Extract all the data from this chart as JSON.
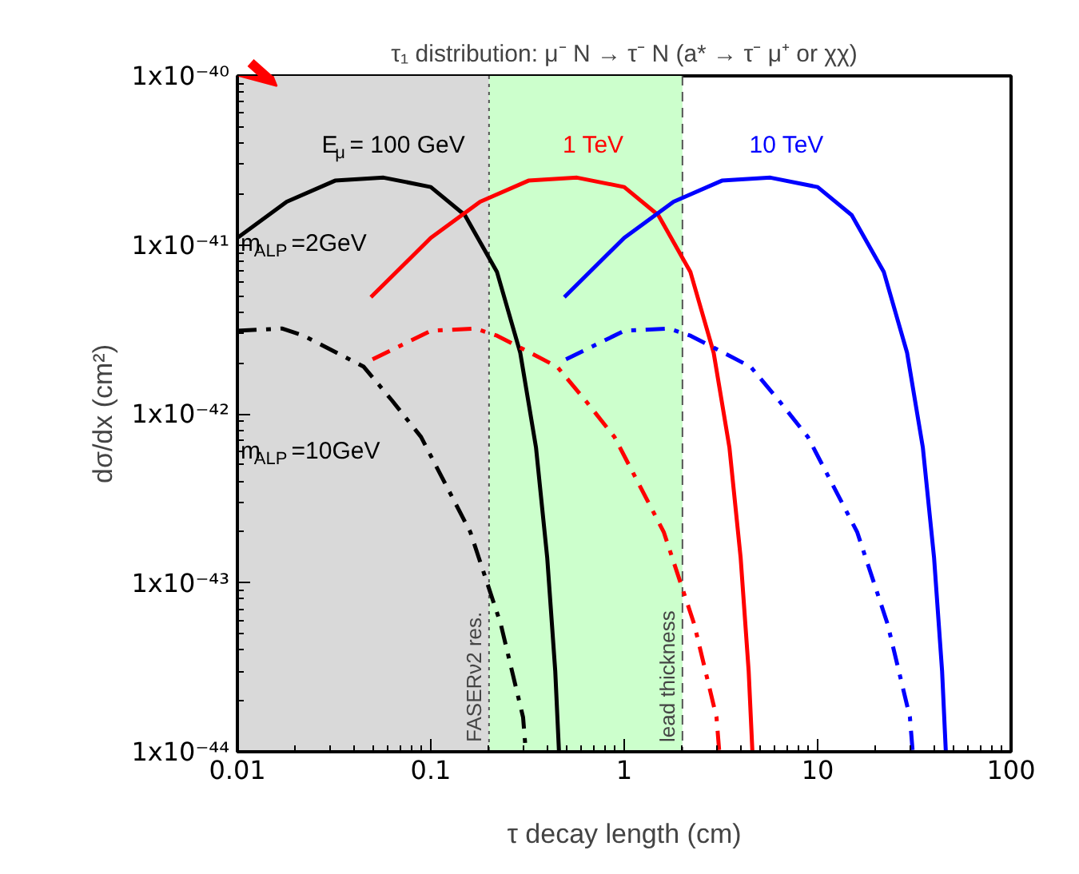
{
  "chart_data": {
    "type": "line",
    "title": "τ₁ distribution: μ⁻ N → τ⁻ N (a* → τ⁻ μ⁺ or χχ)",
    "xlabel": "τ decay length (cm)",
    "ylabel": "dσ/dx (cm²)",
    "log": "xy",
    "grid": false,
    "xlim": [
      0.01,
      100
    ],
    "ylim": [
      1e-44,
      1e-40
    ],
    "xticks": [
      0.01,
      0.1,
      1,
      10,
      100
    ],
    "yticks": [
      {
        "value": 1e-44,
        "label": "1x10⁻⁴⁴"
      },
      {
        "value": 1e-43,
        "label": "1x10⁻⁴³"
      },
      {
        "value": 1e-42,
        "label": "1x10⁻⁴²"
      },
      {
        "value": 1e-41,
        "label": "1x10⁻⁴¹"
      },
      {
        "value": 1e-40,
        "label": "1x10⁻⁴⁰"
      }
    ],
    "series": [
      {
        "name": "E$_{μ}$ = 100 GeV",
        "color": "#000000",
        "line_style": "solid",
        "x": [
          0.01,
          0.018,
          0.032,
          0.057,
          0.1,
          0.15,
          0.22,
          0.29,
          0.35,
          0.4,
          0.44,
          0.46
        ],
        "values": [
          1.1e-41,
          1.8e-41,
          2.4e-41,
          2.5e-41,
          2.2e-41,
          1.5e-41,
          6.9e-42,
          2.3e-42,
          6.3e-43,
          1.4e-43,
          3e-44,
          1e-44
        ]
      },
      {
        "color": "#000000",
        "line_style": "dashdot",
        "x": [
          0.01,
          0.017,
          0.022,
          0.045,
          0.063,
          0.089,
          0.16,
          0.23,
          0.3,
          0.31
        ],
        "values": [
          3.1e-42,
          3.2e-42,
          2.9e-42,
          1.9e-42,
          1.2e-42,
          7.3e-43,
          2e-43,
          5.7e-44,
          1.6e-44,
          1e-44
        ]
      },
      {
        "name": "1 TeV",
        "color": "#ff0000",
        "line_style": "solid",
        "x": [
          0.049,
          0.1,
          0.18,
          0.32,
          0.57,
          1.0,
          1.5,
          2.2,
          2.9,
          3.5,
          4.0,
          4.4,
          4.6
        ],
        "values": [
          4.9e-42,
          1.1e-41,
          1.8e-41,
          2.4e-41,
          2.5e-41,
          2.2e-41,
          1.5e-41,
          6.9e-42,
          2.3e-42,
          6.3e-43,
          1.4e-43,
          3e-44,
          1e-44
        ]
      },
      {
        "color": "#ff0000",
        "line_style": "dashdot",
        "x": [
          0.05,
          0.1,
          0.17,
          0.22,
          0.45,
          0.63,
          0.89,
          1.6,
          2.3,
          3.0,
          3.1
        ],
        "values": [
          2.1e-42,
          3.1e-42,
          3.2e-42,
          2.9e-42,
          1.9e-42,
          1.2e-42,
          7.3e-43,
          2e-43,
          5.7e-44,
          1.6e-44,
          1e-44
        ]
      },
      {
        "name": "10 TeV",
        "color": "#0000ff",
        "line_style": "solid",
        "x": [
          0.49,
          1.0,
          1.8,
          3.2,
          5.7,
          10,
          15,
          22,
          29,
          35,
          40,
          44,
          46
        ],
        "values": [
          4.9e-42,
          1.1e-41,
          1.8e-41,
          2.4e-41,
          2.5e-41,
          2.2e-41,
          1.5e-41,
          6.9e-42,
          2.3e-42,
          6.3e-43,
          1.4e-43,
          3e-44,
          1e-44
        ]
      },
      {
        "color": "#0000ff",
        "line_style": "dashdot",
        "x": [
          0.5,
          1.0,
          1.7,
          2.2,
          4.5,
          6.3,
          8.9,
          16,
          23,
          30,
          31
        ],
        "values": [
          2.1e-42,
          3.1e-42,
          3.2e-42,
          2.9e-42,
          1.9e-42,
          1.2e-42,
          7.3e-43,
          2e-43,
          5.7e-44,
          1.6e-44,
          1e-44
        ]
      }
    ],
    "bands": [
      {
        "axis": "x",
        "from": 0.01,
        "to": 0.2,
        "color": "#d9d9d9"
      },
      {
        "axis": "x",
        "from": 0.2,
        "to": 2,
        "color": "#ccffcc"
      }
    ],
    "ref_lines": [
      {
        "axis": "x",
        "value": 0.2,
        "label": "FASERν2 res.",
        "line_style": "dotted",
        "color": "#555555"
      },
      {
        "axis": "x",
        "value": 2,
        "label": "lead thickness",
        "line_style": "dashed",
        "color": "#555555"
      }
    ],
    "annotations": [
      "m$_{ALP}$=2GeV",
      "m$_{ALP}$=10GeV"
    ]
  }
}
